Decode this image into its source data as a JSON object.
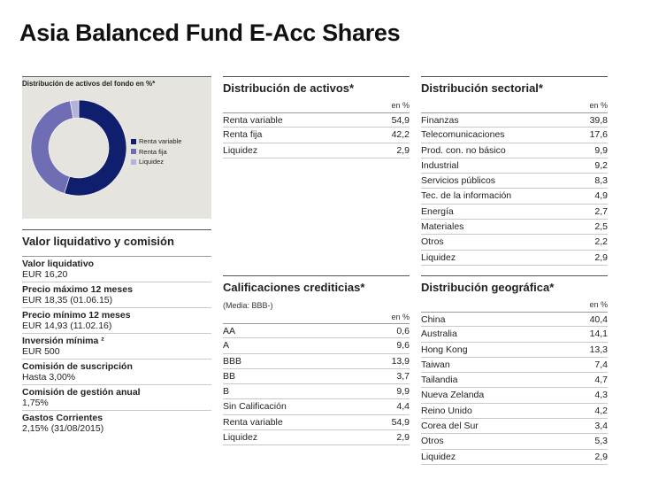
{
  "title": "Asia Balanced Fund E-Acc Shares",
  "chart_data": {
    "type": "pie",
    "title": "Distribución de activos del fondo en %*",
    "categories": [
      "Renta variable",
      "Renta fija",
      "Liquidez"
    ],
    "values": [
      54.9,
      42.2,
      2.9
    ],
    "colors": [
      "#0f1f6e",
      "#6f6db3",
      "#b3b3d9"
    ],
    "legend": "right"
  },
  "valor": {
    "title": "Valor liquidativo y comisión",
    "items": [
      {
        "label": "Valor liquidativo",
        "value": "EUR 16,20"
      },
      {
        "label": "Precio máximo 12 meses",
        "value": "EUR 18,35 (01.06.15)"
      },
      {
        "label": "Precio mínimo 12 meses",
        "value": "EUR 14,93 (11.02.16)"
      },
      {
        "label": "Inversión mínima ²",
        "value": "EUR 500"
      },
      {
        "label": "Comisión de suscripción",
        "value": "Hasta 3,00%"
      },
      {
        "label": "Comisión de gestión anual",
        "value": "1,75%"
      },
      {
        "label": "Gastos Corrientes",
        "value": "2,15% (31/08/2015)"
      }
    ]
  },
  "activos": {
    "title": "Distribución de activos*",
    "unit": "en %",
    "rows": [
      {
        "name": "Renta variable",
        "value": "54,9"
      },
      {
        "name": "Renta fija",
        "value": "42,2"
      },
      {
        "name": "Liquidez",
        "value": "2,9"
      }
    ]
  },
  "calificaciones": {
    "title": "Calificaciones crediticias*",
    "subtitle": "(Media: BBB-)",
    "unit": "en %",
    "rows": [
      {
        "name": "AA",
        "value": "0,6"
      },
      {
        "name": "A",
        "value": "9,6"
      },
      {
        "name": "BBB",
        "value": "13,9"
      },
      {
        "name": "BB",
        "value": "3,7"
      },
      {
        "name": "B",
        "value": "9,9"
      },
      {
        "name": "Sin Calificación",
        "value": "4,4"
      },
      {
        "name": "Renta variable",
        "value": "54,9"
      },
      {
        "name": "Liquidez",
        "value": "2,9"
      }
    ]
  },
  "sectorial": {
    "title": "Distribución sectorial*",
    "unit": "en %",
    "rows": [
      {
        "name": "Finanzas",
        "value": "39,8"
      },
      {
        "name": "Telecomunicaciones",
        "value": "17,6"
      },
      {
        "name": "Prod. con. no básico",
        "value": "9,9"
      },
      {
        "name": "Industrial",
        "value": "9,2"
      },
      {
        "name": "Servicios públicos",
        "value": "8,3"
      },
      {
        "name": "Tec. de la información",
        "value": "4,9"
      },
      {
        "name": "Energía",
        "value": "2,7"
      },
      {
        "name": "Materiales",
        "value": "2,5"
      },
      {
        "name": "Otros",
        "value": "2,2"
      },
      {
        "name": "Liquidez",
        "value": "2,9"
      }
    ]
  },
  "geografica": {
    "title": "Distribución geográfica*",
    "unit": "en %",
    "rows": [
      {
        "name": "China",
        "value": "40,4"
      },
      {
        "name": "Australia",
        "value": "14,1"
      },
      {
        "name": "Hong Kong",
        "value": "13,3"
      },
      {
        "name": "Taiwan",
        "value": "7,4"
      },
      {
        "name": "Tailandia",
        "value": "4,7"
      },
      {
        "name": "Nueva Zelanda",
        "value": "4,3"
      },
      {
        "name": "Reino Unido",
        "value": "4,2"
      },
      {
        "name": "Corea del Sur",
        "value": "3,4"
      },
      {
        "name": "Otros",
        "value": "5,3"
      },
      {
        "name": "Liquidez",
        "value": "2,9"
      }
    ]
  }
}
